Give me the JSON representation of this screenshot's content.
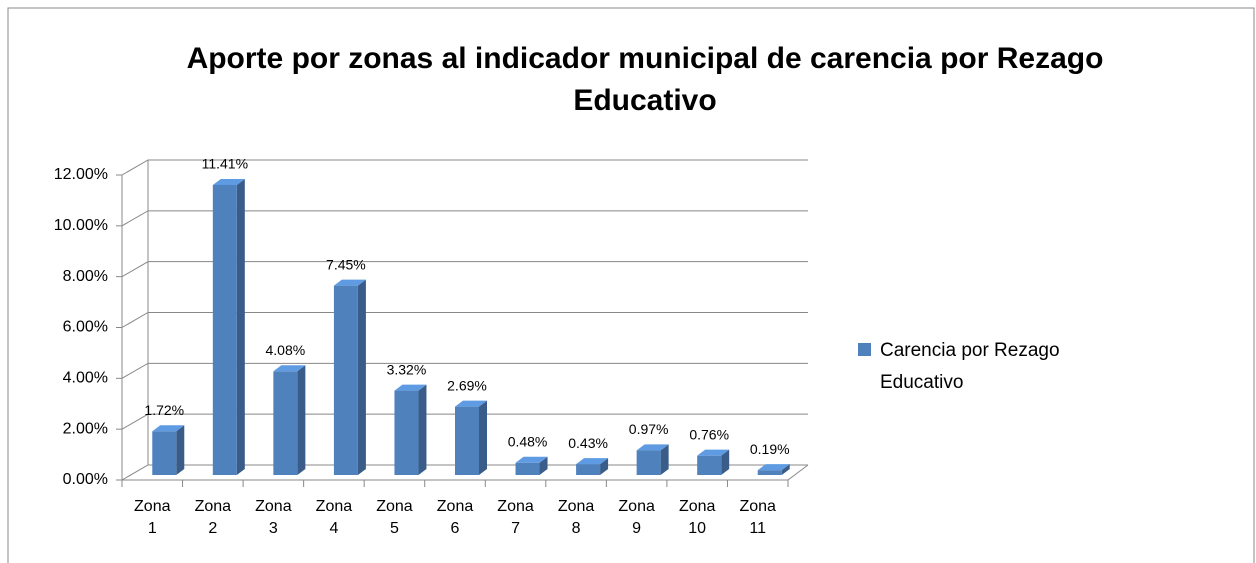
{
  "chart_data": {
    "type": "bar3d",
    "title": "Aporte por zonas al indicador municipal de carencia por Rezago Educativo",
    "categories": [
      "Zona 1",
      "Zona 2",
      "Zona 3",
      "Zona 4",
      "Zona 5",
      "Zona 6",
      "Zona 7",
      "Zona 8",
      "Zona 9",
      "Zona 10",
      "Zona 11"
    ],
    "series": [
      {
        "name": "Carencia por Rezago Educativo",
        "color": "#4f81bd",
        "values": [
          1.72,
          11.41,
          4.08,
          7.45,
          3.32,
          2.69,
          0.48,
          0.43,
          0.97,
          0.76,
          0.19
        ],
        "value_labels": [
          "1.72%",
          "11.41%",
          "4.08%",
          "7.45%",
          "3.32%",
          "2.69%",
          "0.48%",
          "0.43%",
          "0.97%",
          "0.76%",
          "0.19%"
        ]
      }
    ],
    "ylim": [
      0,
      12
    ],
    "yticks": [
      {
        "value": 0,
        "label": "0.00%"
      },
      {
        "value": 2,
        "label": "2.00%"
      },
      {
        "value": 4,
        "label": "4.00%"
      },
      {
        "value": 6,
        "label": "6.00%"
      },
      {
        "value": 8,
        "label": "8.00%"
      },
      {
        "value": 10,
        "label": "10.00%"
      },
      {
        "value": 12,
        "label": "12.00%"
      }
    ],
    "grid": true,
    "legend": "right"
  }
}
